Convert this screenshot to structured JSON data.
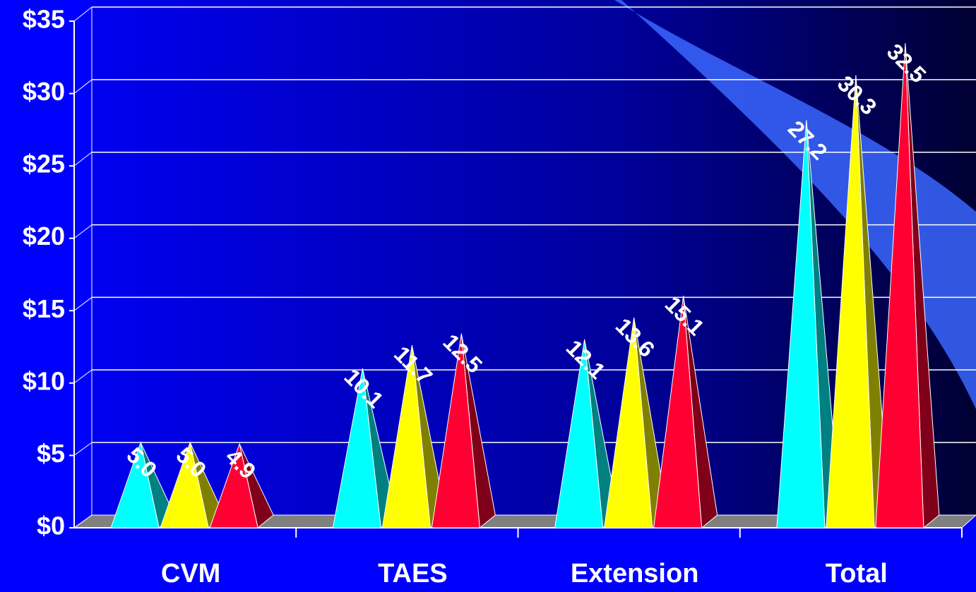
{
  "chart_data": {
    "type": "bar",
    "categories": [
      "CVM",
      "TAES",
      "Extension",
      "Total"
    ],
    "series": [
      {
        "color": "#00ffff",
        "values": [
          5.0,
          10.1,
          12.1,
          27.2
        ],
        "value_labels": [
          "5.0",
          "10.1",
          "12.1",
          "27.2"
        ]
      },
      {
        "color": "#ffff00",
        "values": [
          5.0,
          11.7,
          13.6,
          30.3
        ],
        "value_labels": [
          "5.0",
          "11.7",
          "13.6",
          "30.3"
        ]
      },
      {
        "color": "#ff0033",
        "values": [
          4.9,
          12.5,
          15.1,
          32.5
        ],
        "value_labels": [
          "4.9",
          "12.5",
          "15.1",
          "32.5"
        ]
      }
    ],
    "ylim": [
      0,
      35
    ],
    "yticks": [
      {
        "value": 0,
        "label": "$0"
      },
      {
        "value": 5,
        "label": "$5"
      },
      {
        "value": 10,
        "label": "$10"
      },
      {
        "value": 15,
        "label": "$15"
      },
      {
        "value": 20,
        "label": "$20"
      },
      {
        "value": 25,
        "label": "$25"
      },
      {
        "value": 30,
        "label": "$30"
      },
      {
        "value": 35,
        "label": "$35"
      }
    ],
    "grid": true
  }
}
